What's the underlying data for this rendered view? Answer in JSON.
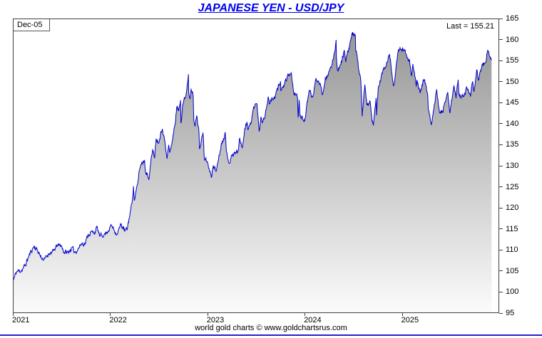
{
  "header": {
    "date_label": "Dec-05",
    "last_label": "Last = 155.21"
  },
  "footer": {
    "caption": "world gold charts © www.goldchartsrus.com"
  },
  "colors": {
    "title": "#0000ee",
    "line": "#0000cc",
    "border": "#404040",
    "bottom_rule": "#2222cc",
    "area_top": "#969696",
    "area_bottom": "#fbfbfb"
  },
  "chart_data": {
    "type": "line",
    "title": "JAPANESE YEN - USD/JPY",
    "xlabel": "",
    "ylabel": "USD/JPY",
    "grid": false,
    "legend": "none",
    "last_date": "Dec-05",
    "last_value": 155.21,
    "xlim": [
      2021,
      2026
    ],
    "ylim": [
      95,
      165
    ],
    "x_ticks": [
      2021,
      2022,
      2023,
      2024,
      2025
    ],
    "x_tick_labels": [
      "2021",
      "2022",
      "2023",
      "2024",
      "2025"
    ],
    "y_ticks": [
      95,
      100,
      105,
      110,
      115,
      120,
      125,
      130,
      135,
      140,
      145,
      150,
      155,
      160,
      165
    ],
    "area_fill": {
      "top": "#969696",
      "bottom": "#fbfbfb"
    },
    "noise": {
      "seed": 11,
      "amplitude": 1.0,
      "step": 0.004,
      "ar": 0.5
    },
    "series": [
      {
        "name": "USD/JPY",
        "color": "#0000cc",
        "points": [
          [
            2021.0,
            102.8
          ],
          [
            2021.03,
            104.7
          ],
          [
            2021.08,
            105.0
          ],
          [
            2021.12,
            106.2
          ],
          [
            2021.16,
            108.6
          ],
          [
            2021.21,
            110.8
          ],
          [
            2021.245,
            109.9
          ],
          [
            2021.29,
            107.9
          ],
          [
            2021.32,
            107.7
          ],
          [
            2021.37,
            109.2
          ],
          [
            2021.41,
            109.6
          ],
          [
            2021.45,
            110.9
          ],
          [
            2021.49,
            111.0
          ],
          [
            2021.52,
            109.4
          ],
          [
            2021.56,
            109.3
          ],
          [
            2021.6,
            110.4
          ],
          [
            2021.63,
            109.4
          ],
          [
            2021.66,
            110.0
          ],
          [
            2021.7,
            111.4
          ],
          [
            2021.74,
            111.5
          ],
          [
            2021.77,
            113.6
          ],
          [
            2021.8,
            114.2
          ],
          [
            2021.83,
            113.9
          ],
          [
            2021.86,
            115.3
          ],
          [
            2021.89,
            113.1
          ],
          [
            2021.93,
            113.5
          ],
          [
            2021.96,
            114.1
          ],
          [
            2022.008,
            115.8
          ],
          [
            2022.063,
            113.7
          ],
          [
            2022.11,
            116.0
          ],
          [
            2022.148,
            114.4
          ],
          [
            2022.17,
            114.8
          ],
          [
            2022.19,
            117.3
          ],
          [
            2022.22,
            121.0
          ],
          [
            2022.236,
            125.1
          ],
          [
            2022.245,
            121.7
          ],
          [
            2022.28,
            125.6
          ],
          [
            2022.296,
            128.9
          ],
          [
            2022.321,
            130.8
          ],
          [
            2022.351,
            131.3
          ],
          [
            2022.36,
            128.9
          ],
          [
            2022.395,
            126.8
          ],
          [
            2022.435,
            134.2
          ],
          [
            2022.455,
            132.2
          ],
          [
            2022.47,
            136.6
          ],
          [
            2022.494,
            135.7
          ],
          [
            2022.535,
            139.0
          ],
          [
            2022.557,
            136.1
          ],
          [
            2022.582,
            131.6
          ],
          [
            2022.6,
            135.0
          ],
          [
            2022.61,
            133.0
          ],
          [
            2022.643,
            136.8
          ],
          [
            2022.666,
            140.2
          ],
          [
            2022.682,
            144.1
          ],
          [
            2022.701,
            143.0
          ],
          [
            2022.722,
            145.9
          ],
          [
            2022.726,
            140.4
          ],
          [
            2022.745,
            144.7
          ],
          [
            2022.778,
            146.9
          ],
          [
            2022.803,
            151.9
          ],
          [
            2022.806,
            147.6
          ],
          [
            2022.82,
            146.3
          ],
          [
            2022.83,
            148.7
          ],
          [
            2022.852,
            146.6
          ],
          [
            2022.858,
            140.8
          ],
          [
            2022.871,
            139.3
          ],
          [
            2022.888,
            142.1
          ],
          [
            2022.912,
            138.0
          ],
          [
            2022.918,
            134.3
          ],
          [
            2022.953,
            137.8
          ],
          [
            2022.967,
            131.7
          ],
          [
            2022.995,
            131.1
          ],
          [
            2023.04,
            127.2
          ],
          [
            2023.06,
            130.2
          ],
          [
            2023.088,
            128.7
          ],
          [
            2023.11,
            131.4
          ],
          [
            2023.14,
            134.9
          ],
          [
            2023.165,
            136.8
          ],
          [
            2023.182,
            137.9
          ],
          [
            2023.195,
            133.2
          ],
          [
            2023.225,
            130.7
          ],
          [
            2023.253,
            132.5
          ],
          [
            2023.28,
            133.0
          ],
          [
            2023.316,
            133.7
          ],
          [
            2023.332,
            136.5
          ],
          [
            2023.357,
            134.5
          ],
          [
            2023.395,
            140.0
          ],
          [
            2023.409,
            140.4
          ],
          [
            2023.414,
            138.8
          ],
          [
            2023.45,
            140.2
          ],
          [
            2023.475,
            143.9
          ],
          [
            2023.494,
            144.8
          ],
          [
            2023.51,
            144.6
          ],
          [
            2023.532,
            138.1
          ],
          [
            2023.551,
            141.8
          ],
          [
            2023.57,
            140.5
          ],
          [
            2023.597,
            142.5
          ],
          [
            2023.625,
            146.4
          ],
          [
            2023.641,
            144.8
          ],
          [
            2023.666,
            146.2
          ],
          [
            2023.693,
            146.0
          ],
          [
            2023.737,
            149.6
          ],
          [
            2023.753,
            150.2
          ],
          [
            2023.756,
            147.9
          ],
          [
            2023.773,
            148.7
          ],
          [
            2023.817,
            150.4
          ],
          [
            2023.83,
            151.7
          ],
          [
            2023.866,
            151.9
          ],
          [
            2023.888,
            147.2
          ],
          [
            2023.91,
            147.0
          ],
          [
            2023.928,
            146.3
          ],
          [
            2023.934,
            141.7
          ],
          [
            2023.945,
            145.9
          ],
          [
            2023.953,
            141.9
          ],
          [
            2023.99,
            140.9
          ],
          [
            2024.003,
            141.0
          ],
          [
            2024.05,
            148.1
          ],
          [
            2024.085,
            146.3
          ],
          [
            2024.118,
            150.7
          ],
          [
            2024.162,
            149.9
          ],
          [
            2024.184,
            147.0
          ],
          [
            2024.214,
            150.9
          ],
          [
            2024.236,
            151.6
          ],
          [
            2024.274,
            153.2
          ],
          [
            2024.318,
            158.3
          ],
          [
            2024.326,
            160.2
          ],
          [
            2024.329,
            155.9
          ],
          [
            2024.339,
            152.9
          ],
          [
            2024.371,
            154.0
          ],
          [
            2024.41,
            157.6
          ],
          [
            2024.425,
            154.8
          ],
          [
            2024.485,
            160.8
          ],
          [
            2024.504,
            161.7
          ],
          [
            2024.524,
            161.3
          ],
          [
            2024.528,
            157.4
          ],
          [
            2024.543,
            156.2
          ],
          [
            2024.565,
            152.0
          ],
          [
            2024.581,
            150.0
          ],
          [
            2024.587,
            146.5
          ],
          [
            2024.595,
            141.7
          ],
          [
            2024.622,
            149.3
          ],
          [
            2024.644,
            144.5
          ],
          [
            2024.674,
            145.5
          ],
          [
            2024.696,
            140.4
          ],
          [
            2024.71,
            139.6
          ],
          [
            2024.738,
            146.2
          ],
          [
            2024.742,
            142.1
          ],
          [
            2024.761,
            148.7
          ],
          [
            2024.813,
            153.0
          ],
          [
            2024.826,
            153.3
          ],
          [
            2024.851,
            154.6
          ],
          [
            2024.876,
            156.7
          ],
          [
            2024.914,
            149.7
          ],
          [
            2024.925,
            149.6
          ],
          [
            2024.969,
            157.8
          ],
          [
            2024.988,
            157.9
          ],
          [
            2025.027,
            157.7
          ],
          [
            2025.065,
            156.0
          ],
          [
            2025.084,
            155.2
          ],
          [
            2025.103,
            151.4
          ],
          [
            2025.117,
            154.3
          ],
          [
            2025.152,
            149.0
          ],
          [
            2025.161,
            150.6
          ],
          [
            2025.191,
            147.3
          ],
          [
            2025.232,
            150.5
          ],
          [
            2025.251,
            149.3
          ],
          [
            2025.271,
            146.3
          ],
          [
            2025.276,
            143.5
          ],
          [
            2025.307,
            139.9
          ],
          [
            2025.329,
            143.1
          ],
          [
            2025.362,
            148.5
          ],
          [
            2025.392,
            142.6
          ],
          [
            2025.425,
            142.8
          ],
          [
            2025.444,
            144.9
          ],
          [
            2025.477,
            147.7
          ],
          [
            2025.499,
            142.7
          ],
          [
            2025.54,
            149.0
          ],
          [
            2025.562,
            146.2
          ],
          [
            2025.584,
            150.7
          ],
          [
            2025.592,
            147.1
          ],
          [
            2025.617,
            146.4
          ],
          [
            2025.641,
            147.0
          ],
          [
            2025.674,
            148.5
          ],
          [
            2025.712,
            146.4
          ],
          [
            2025.734,
            149.9
          ],
          [
            2025.747,
            147.9
          ],
          [
            2025.762,
            150.4
          ],
          [
            2025.775,
            152.9
          ],
          [
            2025.795,
            150.6
          ],
          [
            2025.83,
            154.0
          ],
          [
            2025.866,
            154.8
          ],
          [
            2025.888,
            157.5
          ],
          [
            2025.904,
            156.2
          ],
          [
            2025.918,
            155.5
          ],
          [
            2025.929,
            155.21
          ]
        ]
      }
    ]
  }
}
